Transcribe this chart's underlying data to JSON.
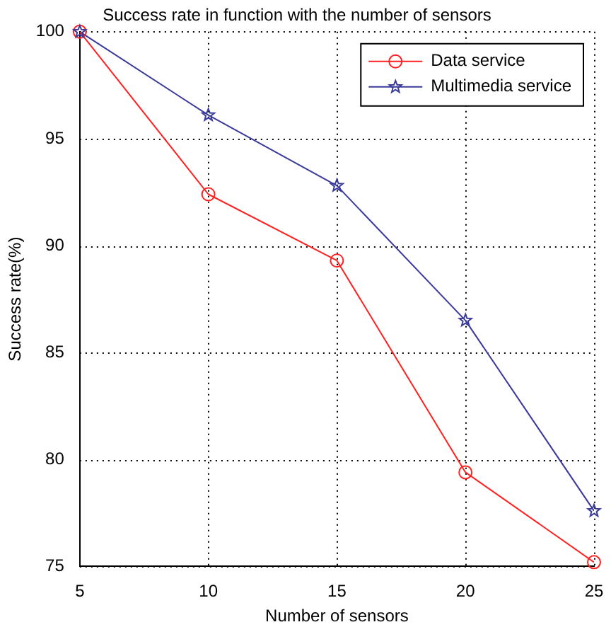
{
  "chart_data": {
    "type": "line",
    "title": "Success rate in function with the number of sensors",
    "xlabel": "Number of sensors",
    "ylabel": "Success rate(%)",
    "x": [
      5,
      10,
      15,
      20,
      25
    ],
    "series": [
      {
        "name": "Data service",
        "color": "#ff2020",
        "marker": "circle",
        "values": [
          100,
          92.4,
          89.3,
          79.4,
          75.2
        ]
      },
      {
        "name": "Multimedia service",
        "color": "#3a3a9a",
        "marker": "star",
        "values": [
          100,
          96.1,
          92.8,
          86.5,
          77.6
        ]
      }
    ],
    "xlim": [
      5,
      25
    ],
    "xticks": [
      5,
      10,
      15,
      20,
      25
    ],
    "ylim": [
      75,
      100
    ],
    "yticks": [
      75,
      80,
      85,
      90,
      95,
      100
    ],
    "grid": true,
    "legend": "top right",
    "line_style": "solid"
  }
}
